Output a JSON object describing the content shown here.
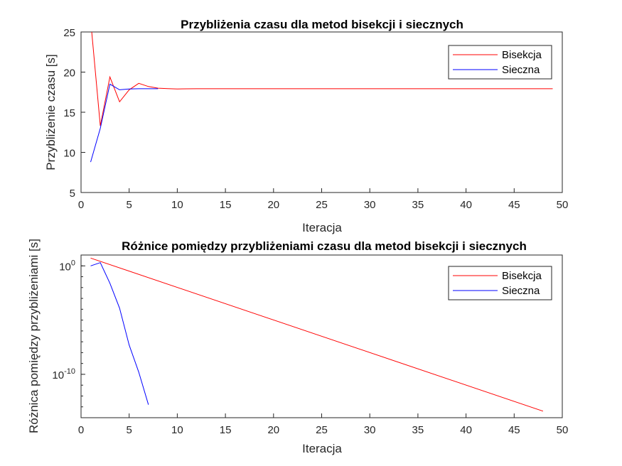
{
  "colors": {
    "bisection": "#ff0000",
    "secant": "#0000ff",
    "axis": "#262626"
  },
  "chart_data": [
    {
      "type": "line",
      "title": "Przybliżenia czasu dla metod bisekcji i siecznych",
      "xlabel": "Iteracja",
      "ylabel": "Przybliżenie czasu [s]",
      "xlim": [
        0,
        50
      ],
      "ylim": [
        5,
        25
      ],
      "xticks": [
        0,
        5,
        10,
        15,
        20,
        25,
        30,
        35,
        40,
        45,
        50
      ],
      "yticks": [
        5,
        10,
        15,
        20,
        25
      ],
      "yscale": "linear",
      "grid": false,
      "legend": "top-right",
      "series": [
        {
          "name": "Bisekcja",
          "color": "#ff0000",
          "x": [
            1,
            2,
            3,
            4,
            5,
            6,
            7,
            8,
            9,
            10,
            11,
            12,
            13,
            14,
            15,
            16,
            17,
            18,
            19,
            20,
            21,
            22,
            23,
            24,
            25,
            26,
            27,
            28,
            29,
            30,
            31,
            32,
            33,
            34,
            35,
            36,
            37,
            38,
            39,
            40,
            41,
            42,
            43,
            44,
            45,
            46,
            47,
            48,
            49
          ],
          "y": [
            26.5,
            13.3,
            19.4,
            16.3,
            17.8,
            18.6,
            18.2,
            18.0,
            17.95,
            17.9,
            17.92,
            17.93,
            17.93,
            17.93,
            17.93,
            17.93,
            17.93,
            17.93,
            17.93,
            17.93,
            17.93,
            17.93,
            17.93,
            17.93,
            17.93,
            17.93,
            17.93,
            17.93,
            17.93,
            17.93,
            17.93,
            17.93,
            17.93,
            17.93,
            17.93,
            17.93,
            17.93,
            17.93,
            17.93,
            17.93,
            17.93,
            17.93,
            17.93,
            17.93,
            17.93,
            17.93,
            17.93,
            17.93,
            17.93
          ]
        },
        {
          "name": "Sieczna",
          "color": "#0000ff",
          "x": [
            1,
            2,
            3,
            4,
            5,
            6,
            7,
            8
          ],
          "y": [
            8.8,
            13.0,
            18.5,
            17.8,
            17.9,
            17.93,
            17.93,
            17.93
          ]
        }
      ]
    },
    {
      "type": "line",
      "title": "Różnice pomiędzy przybliżeniami czasu dla metod bisekcji i siecznych",
      "xlabel": "Iteracja",
      "ylabel": "Różnica pomiędzy przybliżeniami [s]",
      "xlim": [
        0,
        50
      ],
      "ylim": [
        -14,
        1
      ],
      "xticks": [
        0,
        5,
        10,
        15,
        20,
        25,
        30,
        35,
        40,
        45,
        50
      ],
      "ytick_labels": [
        {
          "exp": -10,
          "label": "10",
          "sup": "-10"
        },
        {
          "exp": 0,
          "label": "10",
          "sup": "0"
        }
      ],
      "yscale": "log",
      "grid": false,
      "legend": "top-right",
      "series": [
        {
          "name": "Bisekcja",
          "color": "#ff0000",
          "x": [
            1,
            48
          ],
          "log10_y": [
            0.72,
            -13.4
          ]
        },
        {
          "name": "Sieczna",
          "color": "#0000ff",
          "x": [
            1,
            2,
            3,
            4,
            5,
            6,
            7
          ],
          "log10_y": [
            0.0,
            0.3,
            -1.6,
            -3.9,
            -7.3,
            -9.8,
            -12.8
          ]
        }
      ]
    }
  ]
}
